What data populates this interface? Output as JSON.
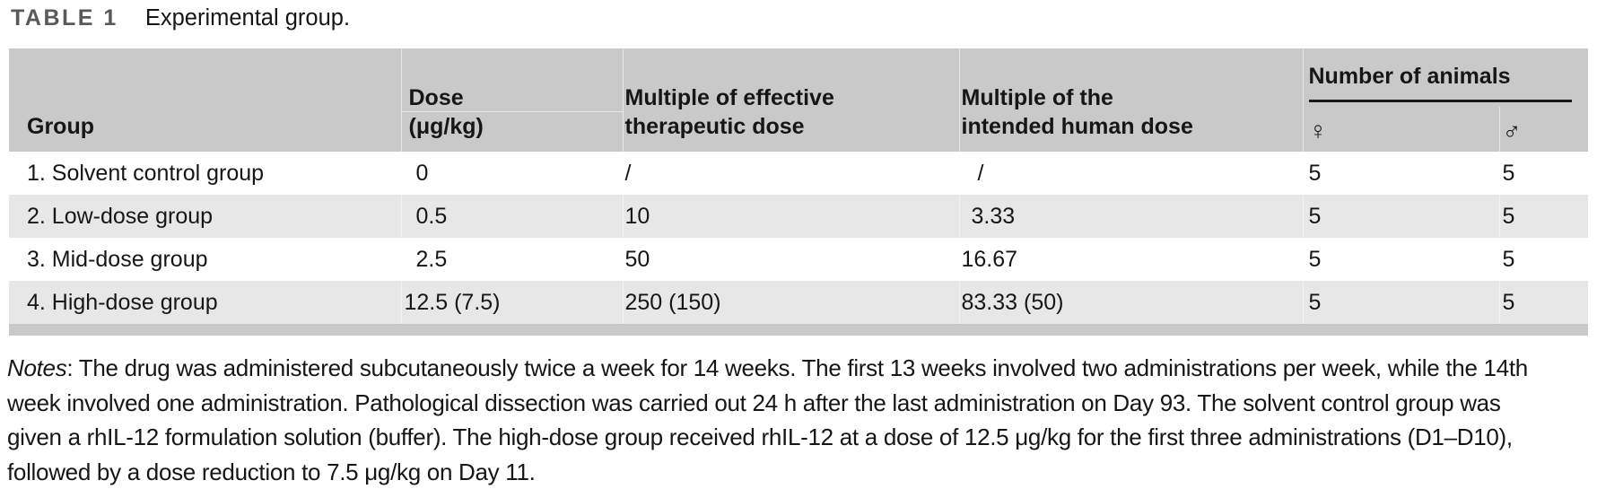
{
  "title": {
    "label": "TABLE 1",
    "caption": "Experimental group."
  },
  "table": {
    "headers": {
      "group": "Group",
      "dose_line1": "Dose",
      "dose_line2": "(μg/kg)",
      "multiple_effective_line1": "Multiple of effective",
      "multiple_effective_line2": "therapeutic dose",
      "multiple_human_line1": "Multiple of the",
      "multiple_human_line2": "intended human dose",
      "animals": "Number of animals",
      "female_symbol": "♀",
      "male_symbol": "♂"
    },
    "rows": [
      {
        "group": "1. Solvent control group",
        "dose": "0",
        "multiple_effective": "/",
        "multiple_human": "/",
        "female": "5",
        "male": "5"
      },
      {
        "group": "2. Low-dose group",
        "dose": "0.5",
        "multiple_effective": "10",
        "multiple_human": "3.33",
        "female": "5",
        "male": "5"
      },
      {
        "group": "3. Mid-dose group",
        "dose": "2.5",
        "multiple_effective": "50",
        "multiple_human": "16.67",
        "female": "5",
        "male": "5"
      },
      {
        "group": "4. High-dose group",
        "dose": "12.5 (7.5)",
        "multiple_effective": "250 (150)",
        "multiple_human": "83.33 (50)",
        "female": "5",
        "male": "5"
      }
    ]
  },
  "notes": {
    "label": "Notes",
    "lines": [
      ": The drug was administered subcutaneously twice a week for 14 weeks. The first 13 weeks involved two administrations per week, while the 14th",
      "week involved one administration. Pathological dissection was carried out 24 h after the last administration on Day 93. The solvent control group was",
      "given a rhIL-12 formulation solution (buffer). The high-dose group received rhIL-12 at a dose of 12.5 μg/kg for the first three administrations (D1–D10),",
      "followed by a dose reduction to 7.5 μg/kg on Day 11."
    ]
  },
  "colors": {
    "header_bg": "#c9c9c9",
    "stripe_bg": "#e7e7e7",
    "label": "#595959",
    "text": "#161616"
  }
}
